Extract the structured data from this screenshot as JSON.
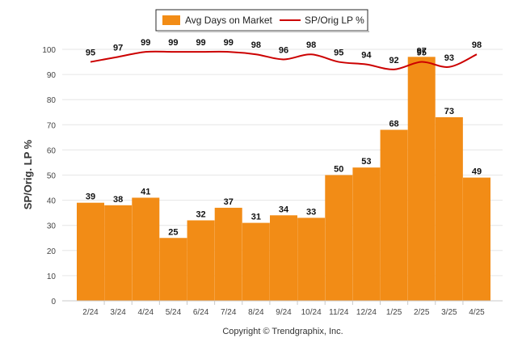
{
  "chart_data": {
    "type": "bar",
    "categories": [
      "2/24",
      "3/24",
      "4/24",
      "5/24",
      "6/24",
      "7/24",
      "8/24",
      "9/24",
      "10/24",
      "11/24",
      "12/24",
      "1/25",
      "2/25",
      "3/25",
      "4/25"
    ],
    "series": [
      {
        "name": "Avg Days on Market",
        "type": "bar",
        "color": "#f28c16",
        "values": [
          39,
          38,
          41,
          25,
          32,
          37,
          31,
          34,
          33,
          50,
          53,
          68,
          97,
          73,
          49
        ]
      },
      {
        "name": "SP/Orig LP %",
        "type": "line",
        "color": "#cc0000",
        "values": [
          95,
          97,
          99,
          99,
          99,
          99,
          98,
          96,
          98,
          95,
          94,
          92,
          95,
          93,
          98
        ]
      }
    ],
    "ylabel": "SP/Orig. LP %",
    "ylim": [
      0,
      100
    ],
    "yticks": [
      0,
      10,
      20,
      30,
      40,
      50,
      60,
      70,
      80,
      90,
      100
    ],
    "grid": true,
    "legend_position": "top-center"
  },
  "footer": {
    "copyright": "Copyright © Trendgraphix, Inc."
  }
}
